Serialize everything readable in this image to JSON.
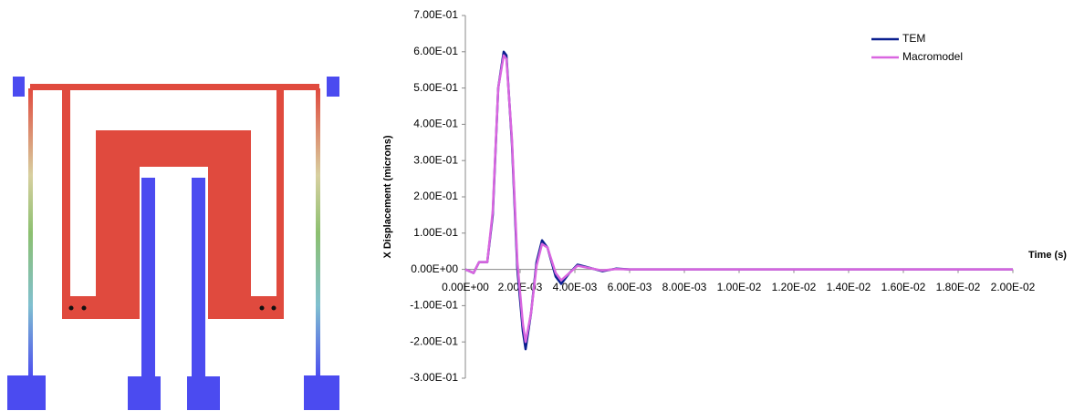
{
  "chart_data": {
    "type": "line",
    "ylabel": "X Displacement (microns)",
    "xlabel": "Time (s)",
    "x": [
      0,
      0.0003,
      0.0005,
      0.0008,
      0.001,
      0.0012,
      0.0014,
      0.0015,
      0.0017,
      0.0019,
      0.0021,
      0.0022,
      0.0024,
      0.0026,
      0.0028,
      0.003,
      0.0033,
      0.0035,
      0.0038,
      0.0041,
      0.0045,
      0.005,
      0.0055,
      0.006,
      0.01,
      0.015,
      0.02
    ],
    "series": [
      {
        "name": "TEM",
        "color": "#0a1f8f",
        "values": [
          0,
          -0.01,
          0.02,
          0.02,
          0.15,
          0.5,
          0.6,
          0.59,
          0.35,
          0,
          -0.17,
          -0.22,
          -0.12,
          0.02,
          0.08,
          0.06,
          -0.02,
          -0.04,
          -0.01,
          0.013,
          0.005,
          -0.005,
          0.002,
          0,
          0,
          0,
          0
        ]
      },
      {
        "name": "Macromodel",
        "color": "#d966e0",
        "values": [
          0,
          -0.01,
          0.02,
          0.02,
          0.16,
          0.5,
          0.59,
          0.58,
          0.36,
          0.02,
          -0.15,
          -0.2,
          -0.12,
          0.01,
          0.07,
          0.06,
          -0.01,
          -0.03,
          -0.01,
          0.01,
          0.004,
          -0.003,
          0.001,
          0,
          0,
          0,
          0
        ]
      }
    ],
    "xlim": [
      0,
      0.02
    ],
    "ylim": [
      -0.3,
      0.7
    ],
    "xticks": [
      {
        "value": 0,
        "label": "0.00E+00"
      },
      {
        "value": 0.002,
        "label": "2.00E-03"
      },
      {
        "value": 0.004,
        "label": "4.00E-03"
      },
      {
        "value": 0.006,
        "label": "6.00E-03"
      },
      {
        "value": 0.008,
        "label": "8.00E-03"
      },
      {
        "value": 0.01,
        "label": "1.00E-02"
      },
      {
        "value": 0.012,
        "label": "1.20E-02"
      },
      {
        "value": 0.014,
        "label": "1.40E-02"
      },
      {
        "value": 0.016,
        "label": "1.60E-02"
      },
      {
        "value": 0.018,
        "label": "1.80E-02"
      },
      {
        "value": 0.02,
        "label": "2.00E-02"
      }
    ],
    "yticks": [
      {
        "value": -0.3,
        "label": "-3.00E-01"
      },
      {
        "value": -0.2,
        "label": "-2.00E-01"
      },
      {
        "value": -0.1,
        "label": "-1.00E-01"
      },
      {
        "value": 0,
        "label": "0.00E+00"
      },
      {
        "value": 0.1,
        "label": "1.00E-01"
      },
      {
        "value": 0.2,
        "label": "2.00E-01"
      },
      {
        "value": 0.3,
        "label": "3.00E-01"
      },
      {
        "value": 0.4,
        "label": "4.00E-01"
      },
      {
        "value": 0.5,
        "label": "5.00E-01"
      },
      {
        "value": 0.6,
        "label": "6.00E-01"
      },
      {
        "value": 0.7,
        "label": "7.00E-01"
      }
    ],
    "grid": false,
    "legend": "upper right"
  }
}
